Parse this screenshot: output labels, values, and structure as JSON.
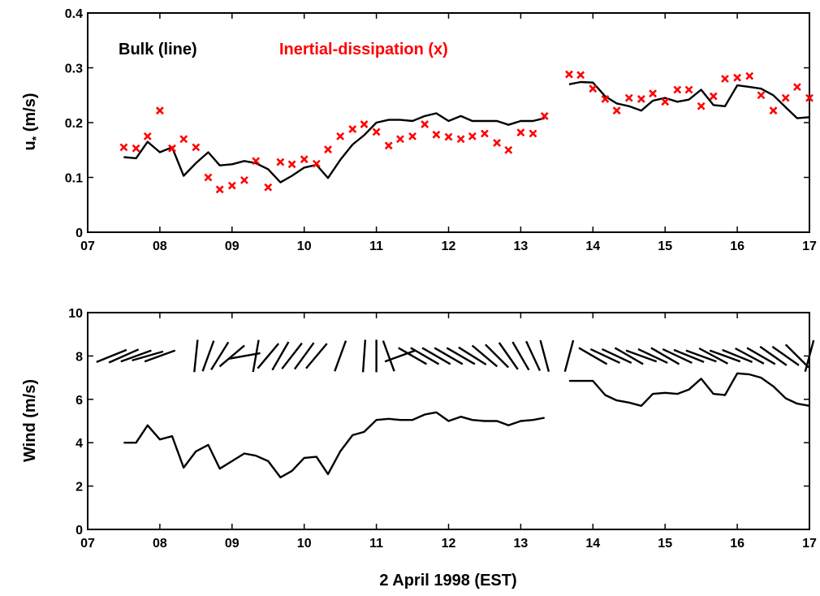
{
  "chart_data": [
    {
      "type": "line+scatter",
      "ylabel": "u",
      "ylabel_subscript": "*",
      "ylabel_unit": " (m/s)",
      "xlim": [
        7,
        17
      ],
      "ylim": [
        0,
        0.4
      ],
      "xticks": [
        7,
        8,
        9,
        10,
        11,
        12,
        13,
        14,
        15,
        16,
        17
      ],
      "xtick_labels": [
        "07",
        "08",
        "09",
        "10",
        "11",
        "12",
        "13",
        "14",
        "15",
        "16",
        "17"
      ],
      "yticks": [
        0,
        0.1,
        0.2,
        0.3,
        0.4
      ],
      "ytick_labels": [
        "0",
        "0.1",
        "0.2",
        "0.3",
        "0.4"
      ],
      "legend": [
        {
          "label": "Bulk (line)",
          "color": "#000000"
        },
        {
          "label": "Inertial-dissipation (x)",
          "color": "#ff0000"
        }
      ],
      "series": [
        {
          "name": "Bulk (line)",
          "style": "line",
          "color": "#000000",
          "segments": [
            {
              "x": [
                7.5,
                7.67,
                7.83,
                8.0,
                8.17,
                8.33,
                8.5,
                8.67,
                8.83,
                9.0,
                9.17,
                9.33,
                9.5,
                9.67,
                9.83,
                10.0,
                10.17,
                10.33,
                10.5,
                10.67,
                10.83,
                11.0,
                11.17,
                11.33,
                11.5,
                11.67,
                11.83,
                12.0,
                12.17,
                12.33,
                12.5,
                12.67,
                12.83,
                13.0,
                13.17,
                13.33
              ],
              "y": [
                0.137,
                0.135,
                0.165,
                0.146,
                0.155,
                0.103,
                0.126,
                0.146,
                0.122,
                0.124,
                0.13,
                0.126,
                0.115,
                0.091,
                0.103,
                0.118,
                0.123,
                0.099,
                0.132,
                0.16,
                0.177,
                0.2,
                0.205,
                0.205,
                0.203,
                0.212,
                0.217,
                0.203,
                0.212,
                0.203,
                0.203,
                0.203,
                0.196,
                0.203,
                0.203,
                0.208
              ]
            },
            {
              "x": [
                13.67,
                13.83,
                14.0,
                14.17,
                14.33,
                14.5,
                14.67,
                14.83,
                15.0,
                15.17,
                15.33,
                15.5,
                15.67,
                15.83,
                16.0,
                16.17,
                16.33,
                16.5,
                16.67,
                16.83,
                17.0
              ],
              "y": [
                0.27,
                0.274,
                0.273,
                0.248,
                0.235,
                0.23,
                0.222,
                0.24,
                0.245,
                0.238,
                0.242,
                0.26,
                0.232,
                0.23,
                0.268,
                0.265,
                0.262,
                0.25,
                0.228,
                0.208,
                0.21
              ]
            }
          ]
        },
        {
          "name": "Inertial-dissipation (x)",
          "style": "markers",
          "marker": "x",
          "color": "#ff0000",
          "x": [
            7.5,
            7.67,
            7.83,
            8.0,
            8.17,
            8.33,
            8.5,
            8.67,
            8.83,
            9.0,
            9.17,
            9.33,
            9.5,
            9.67,
            9.83,
            10.0,
            10.17,
            10.33,
            10.5,
            10.67,
            10.83,
            11.0,
            11.17,
            11.33,
            11.5,
            11.67,
            11.83,
            12.0,
            12.17,
            12.33,
            12.5,
            12.67,
            12.83,
            13.0,
            13.17,
            13.33,
            13.67,
            13.83,
            14.0,
            14.17,
            14.33,
            14.5,
            14.67,
            14.83,
            15.0,
            15.17,
            15.33,
            15.5,
            15.67,
            15.83,
            16.0,
            16.17,
            16.33,
            16.5,
            16.67,
            16.83,
            17.0
          ],
          "y": [
            0.155,
            0.153,
            0.175,
            0.222,
            0.153,
            0.17,
            0.155,
            0.1,
            0.078,
            0.085,
            0.095,
            0.13,
            0.082,
            0.128,
            0.124,
            0.133,
            0.125,
            0.151,
            0.175,
            0.188,
            0.197,
            0.183,
            0.158,
            0.17,
            0.175,
            0.197,
            0.178,
            0.174,
            0.17,
            0.175,
            0.18,
            0.163,
            0.15,
            0.182,
            0.18,
            0.212,
            0.288,
            0.287,
            0.262,
            0.243,
            0.222,
            0.245,
            0.243,
            0.253,
            0.238,
            0.26,
            0.26,
            0.23,
            0.248,
            0.28,
            0.282,
            0.285,
            0.25,
            0.222,
            0.245,
            0.265,
            0.245
          ]
        }
      ]
    },
    {
      "type": "line+barbs",
      "xlabel": "2 April 1998 (EST)",
      "ylabel": "Wind (m/s)",
      "xlim": [
        7,
        17
      ],
      "ylim": [
        0,
        10
      ],
      "xticks": [
        7,
        8,
        9,
        10,
        11,
        12,
        13,
        14,
        15,
        16,
        17
      ],
      "xtick_labels": [
        "07",
        "08",
        "09",
        "10",
        "11",
        "12",
        "13",
        "14",
        "15",
        "16",
        "17"
      ],
      "yticks": [
        0,
        2,
        4,
        6,
        8,
        10
      ],
      "ytick_labels": [
        "0",
        "2",
        "4",
        "6",
        "8",
        "10"
      ],
      "series": [
        {
          "name": "",
          "style": "line",
          "color": "#000000",
          "segments": [
            {
              "x": [
                7.5,
                7.67,
                7.83,
                8.0,
                8.17,
                8.33,
                8.5,
                8.67,
                8.83,
                9.0,
                9.17,
                9.33,
                9.5,
                9.67,
                9.83,
                10.0,
                10.17,
                10.33,
                10.5,
                10.67,
                10.83,
                11.0,
                11.17,
                11.33,
                11.5,
                11.67,
                11.83,
                12.0,
                12.17,
                12.33,
                12.5,
                12.67,
                12.83,
                13.0,
                13.17,
                13.33
              ],
              "y": [
                4.0,
                4.0,
                4.8,
                4.15,
                4.3,
                2.85,
                3.6,
                3.9,
                2.8,
                3.15,
                3.5,
                3.4,
                3.15,
                2.4,
                2.7,
                3.3,
                3.35,
                2.55,
                3.6,
                4.35,
                4.5,
                5.05,
                5.1,
                5.05,
                5.05,
                5.3,
                5.4,
                5.0,
                5.2,
                5.05,
                5.0,
                5.0,
                4.8,
                5.0,
                5.05,
                5.15
              ]
            },
            {
              "x": [
                13.67,
                13.83,
                14.0,
                14.17,
                14.33,
                14.5,
                14.67,
                14.83,
                15.0,
                15.17,
                15.33,
                15.5,
                15.67,
                15.83,
                16.0,
                16.17,
                16.33,
                16.5,
                16.67,
                16.83,
                17.0
              ],
              "y": [
                6.85,
                6.85,
                6.85,
                6.2,
                5.95,
                5.85,
                5.7,
                6.25,
                6.3,
                6.25,
                6.45,
                6.95,
                6.25,
                6.2,
                7.2,
                7.15,
                7.0,
                6.6,
                6.05,
                5.8,
                5.7
              ]
            }
          ]
        },
        {
          "name": "",
          "style": "direction-sticks",
          "color": "#000000",
          "y_level": 8,
          "x": [
            7.33,
            7.5,
            7.67,
            7.83,
            8.0,
            8.5,
            8.67,
            8.83,
            9.0,
            9.17,
            9.33,
            9.5,
            9.67,
            9.83,
            10.0,
            10.17,
            10.5,
            10.83,
            11.0,
            11.17,
            11.33,
            11.5,
            11.67,
            11.83,
            12.0,
            12.17,
            12.33,
            12.5,
            12.67,
            12.83,
            13.0,
            13.17,
            13.33,
            13.67,
            14.0,
            14.17,
            14.33,
            14.5,
            14.67,
            14.83,
            15.0,
            15.17,
            15.33,
            15.5,
            15.67,
            15.83,
            16.0,
            16.17,
            16.33,
            16.5,
            16.67,
            16.83,
            17.0
          ],
          "angle_deg": [
            22,
            24,
            20,
            16,
            20,
            84,
            70,
            58,
            40,
            10,
            80,
            50,
            60,
            52,
            54,
            50,
            70,
            86,
            90,
            110,
            20,
            150,
            150,
            150,
            150,
            150,
            148,
            140,
            135,
            125,
            120,
            115,
            105,
            75,
            150,
            155,
            155,
            150,
            160,
            155,
            150,
            155,
            158,
            160,
            152,
            160,
            158,
            152,
            150,
            145,
            145,
            135,
            75
          ]
        }
      ]
    }
  ]
}
